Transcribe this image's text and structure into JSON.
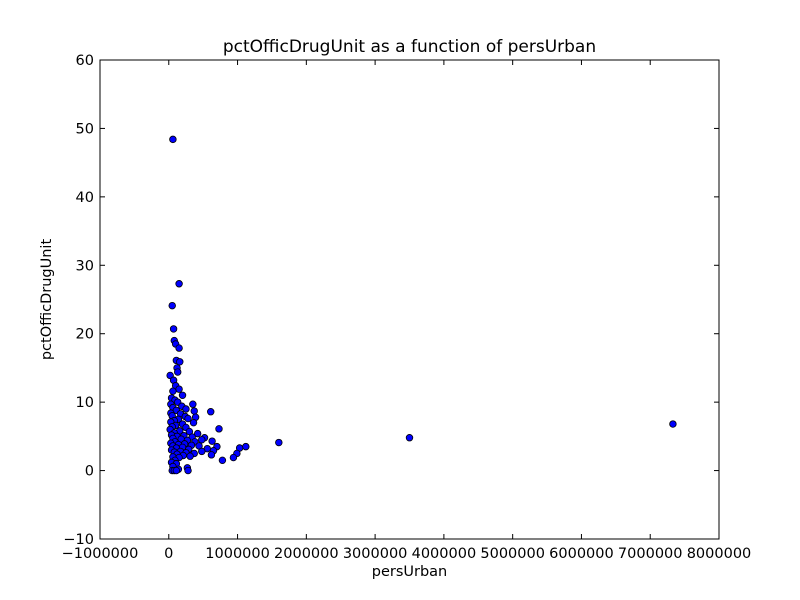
{
  "chart_data": {
    "type": "scatter",
    "title": "pctOfficDrugUnit as a function of persUrban",
    "xlabel": "persUrban",
    "ylabel": "pctOfficDrugUnit",
    "xlim": [
      -1000000,
      8000000
    ],
    "ylim": [
      -10,
      60
    ],
    "xticks": [
      -1000000,
      0,
      1000000,
      2000000,
      3000000,
      4000000,
      5000000,
      6000000,
      7000000,
      8000000
    ],
    "xtick_labels": [
      "−1000000",
      "0",
      "1000000",
      "2000000",
      "3000000",
      "4000000",
      "5000000",
      "6000000",
      "7000000",
      "8000000"
    ],
    "yticks": [
      -10,
      0,
      10,
      20,
      30,
      40,
      50,
      60
    ],
    "ytick_labels": [
      "−10",
      "0",
      "10",
      "20",
      "30",
      "40",
      "50",
      "60"
    ],
    "grid": false,
    "marker_color": "#0000ff",
    "series": [
      {
        "points": [
          [
            60000,
            48.4
          ],
          [
            150000,
            27.3
          ],
          [
            50000,
            24.1
          ],
          [
            70000,
            20.7
          ],
          [
            80000,
            19.0
          ],
          [
            100000,
            18.5
          ],
          [
            150000,
            17.9
          ],
          [
            110000,
            16.1
          ],
          [
            160000,
            15.9
          ],
          [
            120000,
            15.0
          ],
          [
            130000,
            14.4
          ],
          [
            20000,
            13.9
          ],
          [
            70000,
            13.2
          ],
          [
            100000,
            12.4
          ],
          [
            150000,
            11.9
          ],
          [
            60000,
            11.6
          ],
          [
            200000,
            11.0
          ],
          [
            40000,
            10.6
          ],
          [
            90000,
            10.3
          ],
          [
            130000,
            10.0
          ],
          [
            30000,
            9.7
          ],
          [
            350000,
            9.7
          ],
          [
            190000,
            9.4
          ],
          [
            60000,
            9.2
          ],
          [
            250000,
            9.0
          ],
          [
            110000,
            8.8
          ],
          [
            370000,
            8.7
          ],
          [
            610000,
            8.6
          ],
          [
            30000,
            8.4
          ],
          [
            170000,
            8.3
          ],
          [
            50000,
            8.0
          ],
          [
            240000,
            7.9
          ],
          [
            390000,
            7.8
          ],
          [
            280000,
            7.6
          ],
          [
            140000,
            7.5
          ],
          [
            80000,
            7.3
          ],
          [
            30000,
            7.1
          ],
          [
            360000,
            7.0
          ],
          [
            200000,
            6.8
          ],
          [
            100000,
            6.6
          ],
          [
            50000,
            6.4
          ],
          [
            250000,
            6.3
          ],
          [
            730000,
            6.1
          ],
          [
            20000,
            6.0
          ],
          [
            160000,
            5.8
          ],
          [
            300000,
            5.7
          ],
          [
            80000,
            5.5
          ],
          [
            420000,
            5.4
          ],
          [
            40000,
            5.2
          ],
          [
            220000,
            5.1
          ],
          [
            120000,
            5.0
          ],
          [
            340000,
            4.9
          ],
          [
            520000,
            4.8
          ],
          [
            3500000,
            4.8
          ],
          [
            60000,
            4.7
          ],
          [
            180000,
            4.6
          ],
          [
            480000,
            4.5
          ],
          [
            270000,
            4.4
          ],
          [
            630000,
            4.3
          ],
          [
            90000,
            4.2
          ],
          [
            380000,
            4.2
          ],
          [
            1600000,
            4.1
          ],
          [
            30000,
            4.0
          ],
          [
            230000,
            3.9
          ],
          [
            140000,
            3.8
          ],
          [
            330000,
            3.7
          ],
          [
            60000,
            3.6
          ],
          [
            440000,
            3.6
          ],
          [
            700000,
            3.5
          ],
          [
            1120000,
            3.5
          ],
          [
            200000,
            3.4
          ],
          [
            1030000,
            3.3
          ],
          [
            110000,
            3.3
          ],
          [
            560000,
            3.2
          ],
          [
            290000,
            3.1
          ],
          [
            40000,
            3.0
          ],
          [
            650000,
            2.9
          ],
          [
            170000,
            2.8
          ],
          [
            480000,
            2.8
          ],
          [
            80000,
            2.7
          ],
          [
            250000,
            2.6
          ],
          [
            370000,
            2.5
          ],
          [
            990000,
            2.5
          ],
          [
            120000,
            2.4
          ],
          [
            620000,
            2.3
          ],
          [
            210000,
            2.2
          ],
          [
            310000,
            2.1
          ],
          [
            60000,
            2.0
          ],
          [
            940000,
            1.9
          ],
          [
            150000,
            1.9
          ],
          [
            90000,
            1.5
          ],
          [
            780000,
            1.5
          ],
          [
            40000,
            1.2
          ],
          [
            110000,
            1.0
          ],
          [
            60000,
            0.6
          ],
          [
            270000,
            0.4
          ],
          [
            140000,
            0.2
          ],
          [
            50000,
            0.0
          ],
          [
            80000,
            0.0
          ],
          [
            110000,
            0.0
          ],
          [
            280000,
            0.0
          ],
          [
            7330000,
            6.8
          ]
        ]
      }
    ]
  }
}
